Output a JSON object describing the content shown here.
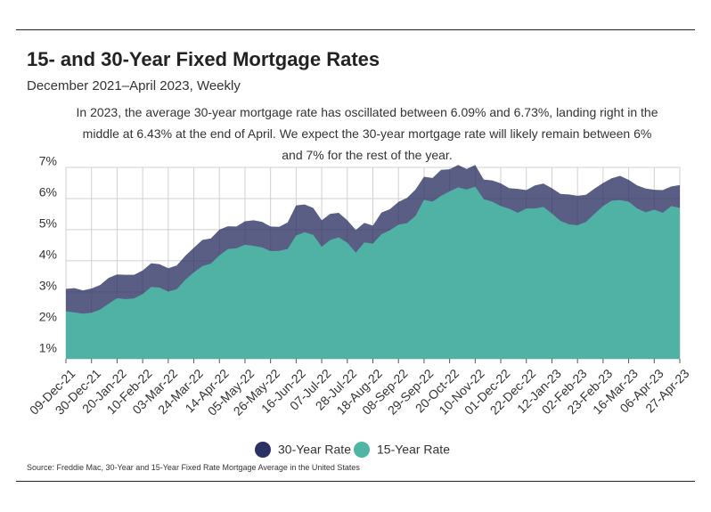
{
  "chart_data": {
    "type": "area",
    "title": "15- and 30-Year Fixed Mortgage Rates",
    "subtitle": "December 2021–April 2023, Weekly",
    "annotation": "In 2023, the average 30-year mortgage rate has oscillated between 6.09% and 6.73%, landing right in the middle at 6.43% at the end of April. We expect the 30-year mortgage rate will likely remain between 6% and 7% for the rest of the year.",
    "source": "Source:  Freddie Mac, 30-Year  and 15-Year Fixed Rate Mortgage Average in the United States",
    "categories": [
      "09-Dec-21",
      null,
      null,
      "30-Dec-21",
      null,
      null,
      "20-Jan-22",
      null,
      null,
      "10-Feb-22",
      null,
      null,
      "03-Mar-22",
      null,
      null,
      "24-Mar-22",
      null,
      null,
      "14-Apr-22",
      null,
      null,
      "05-May-22",
      null,
      null,
      "26-May-22",
      null,
      null,
      "16-Jun-22",
      null,
      null,
      "07-Jul-22",
      null,
      null,
      "28-Jul-22",
      null,
      null,
      "18-Aug-22",
      null,
      null,
      "08-Sep-22",
      null,
      null,
      "29-Sep-22",
      null,
      null,
      "20-Oct-22",
      null,
      null,
      "10-Nov-22",
      null,
      null,
      "01-Dec-22",
      null,
      null,
      "22-Dec-22",
      null,
      null,
      "12-Jan-23",
      null,
      null,
      "02-Feb-23",
      null,
      null,
      "23-Feb-23",
      null,
      null,
      "16-Mar-23",
      null,
      null,
      "06-Apr-23",
      null,
      null,
      "27-Apr-23"
    ],
    "series": [
      {
        "name": "30-Year Rate",
        "color": "#2b3163",
        "values": [
          3.1,
          3.12,
          3.05,
          3.11,
          3.22,
          3.45,
          3.56,
          3.55,
          3.55,
          3.69,
          3.92,
          3.89,
          3.76,
          3.85,
          4.16,
          4.42,
          4.67,
          4.72,
          5.0,
          5.11,
          5.1,
          5.27,
          5.3,
          5.25,
          5.1,
          5.09,
          5.23,
          5.78,
          5.81,
          5.7,
          5.3,
          5.51,
          5.54,
          5.3,
          4.99,
          5.22,
          5.13,
          5.55,
          5.66,
          5.89,
          6.02,
          6.29,
          6.7,
          6.66,
          6.92,
          6.94,
          7.08,
          6.95,
          7.08,
          6.61,
          6.58,
          6.49,
          6.33,
          6.31,
          6.27,
          6.42,
          6.48,
          6.33,
          6.15,
          6.13,
          6.09,
          6.12,
          6.32,
          6.5,
          6.65,
          6.73,
          6.6,
          6.42,
          6.32,
          6.28,
          6.27,
          6.39,
          6.43
        ]
      },
      {
        "name": "15-Year Rate",
        "color": "#4fb5a5",
        "values": [
          2.38,
          2.34,
          2.3,
          2.33,
          2.43,
          2.62,
          2.8,
          2.77,
          2.79,
          2.93,
          3.16,
          3.14,
          3.01,
          3.09,
          3.39,
          3.63,
          3.83,
          3.91,
          4.17,
          4.38,
          4.4,
          4.52,
          4.48,
          4.43,
          4.31,
          4.32,
          4.38,
          4.81,
          4.92,
          4.83,
          4.45,
          4.67,
          4.75,
          4.58,
          4.26,
          4.59,
          4.55,
          4.85,
          4.98,
          5.16,
          5.21,
          5.44,
          5.96,
          5.9,
          6.09,
          6.23,
          6.36,
          6.29,
          6.38,
          5.98,
          5.9,
          5.76,
          5.67,
          5.54,
          5.68,
          5.68,
          5.73,
          5.52,
          5.28,
          5.17,
          5.14,
          5.25,
          5.51,
          5.76,
          5.93,
          5.95,
          5.9,
          5.68,
          5.56,
          5.64,
          5.54,
          5.76,
          5.7
        ]
      }
    ],
    "ylim": [
      0.85,
      7
    ],
    "yticks": [
      {
        "value": 1,
        "label": "1%"
      },
      {
        "value": 2,
        "label": "2%"
      },
      {
        "value": 3,
        "label": "3%"
      },
      {
        "value": 4,
        "label": "4%"
      },
      {
        "value": 5,
        "label": "5%"
      },
      {
        "value": 6,
        "label": "6%"
      },
      {
        "value": 7,
        "label": "7%"
      }
    ],
    "grid": true,
    "legend": "bottom"
  }
}
